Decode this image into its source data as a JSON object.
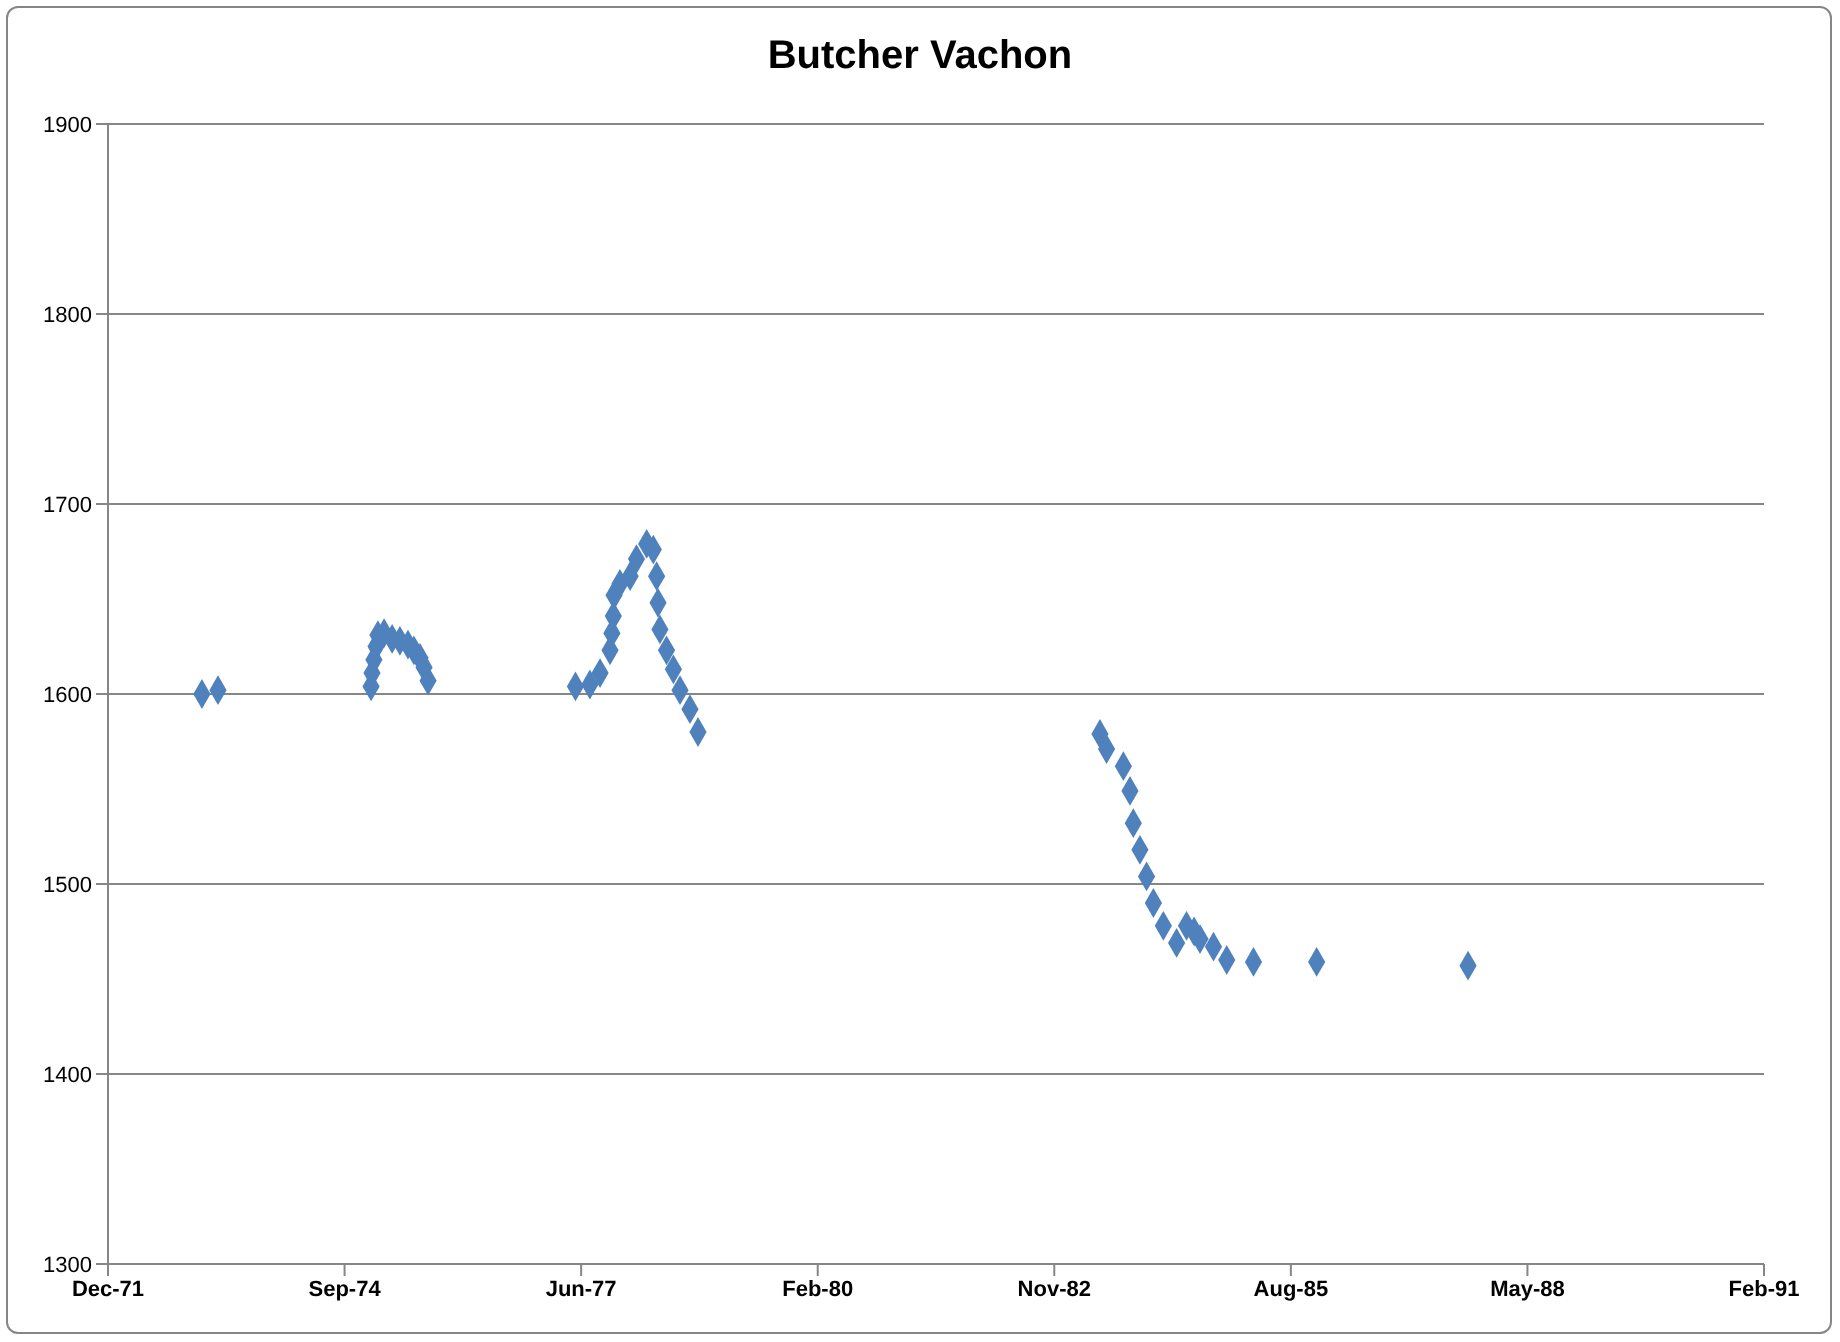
{
  "chart_data": {
    "type": "scatter",
    "title": "Butcher Vachon",
    "x": [
      "1973-01-11",
      "1973-03-20",
      "1974-12-27",
      "1974-12-31",
      "1975-01-08",
      "1975-01-17",
      "1975-01-25",
      "1975-02-20",
      "1975-03-26",
      "1975-04-28",
      "1975-06-01",
      "1975-06-26",
      "1975-07-22",
      "1975-08-08",
      "1975-08-25",
      "1977-05-09",
      "1977-07-09",
      "1977-08-21",
      "1977-10-02",
      "1977-10-10",
      "1977-10-16",
      "1977-10-19",
      "1977-11-13",
      "1977-12-26",
      "1978-01-22",
      "1978-03-06",
      "1978-04-03",
      "1978-04-17",
      "1978-04-23",
      "1978-05-01",
      "1978-05-29",
      "1978-06-27",
      "1978-07-25",
      "1978-09-05",
      "1978-10-09",
      "1983-06-04",
      "1983-07-02",
      "1983-09-11",
      "1983-10-09",
      "1983-10-23",
      "1983-11-20",
      "1983-12-18",
      "1984-01-16",
      "1984-02-27",
      "1984-04-23",
      "1984-06-04",
      "1984-07-06",
      "1984-07-31",
      "1984-09-26",
      "1984-11-21",
      "1985-03-14",
      "1985-12-06",
      "1987-09-07"
    ],
    "values": [
      1600,
      1602,
      1604,
      1611,
      1618,
      1625,
      1631,
      1632,
      1629,
      1628,
      1626,
      1623,
      1619,
      1614,
      1607,
      1604,
      1605,
      1611,
      1623,
      1632,
      1641,
      1652,
      1658,
      1662,
      1671,
      1679,
      1676,
      1662,
      1648,
      1634,
      1623,
      1613,
      1602,
      1592,
      1580,
      1579,
      1571,
      1562,
      1549,
      1532,
      1518,
      1504,
      1490,
      1478,
      1469,
      1478,
      1475,
      1471,
      1467,
      1460,
      1459,
      1459,
      1457
    ],
    "color": "#4f81bd",
    "marker": "diamond",
    "xlim": [
      "1971-12-11",
      "1991-02-09"
    ],
    "xticks": [
      {
        "value": "1971-12-11",
        "label": "Dec-71"
      },
      {
        "value": "1974-09-06",
        "label": "Sep-74"
      },
      {
        "value": "1977-06-02",
        "label": "Jun-77"
      },
      {
        "value": "1980-02-27",
        "label": "Feb-80"
      },
      {
        "value": "1982-11-23",
        "label": "Nov-82"
      },
      {
        "value": "1985-08-19",
        "label": "Aug-85"
      },
      {
        "value": "1988-05-15",
        "label": "May-88"
      },
      {
        "value": "1991-02-09",
        "label": "Feb-91"
      }
    ],
    "ylim": [
      1300,
      1900
    ],
    "yticks": [
      1300,
      1400,
      1500,
      1600,
      1700,
      1800,
      1900
    ],
    "grid": "y"
  }
}
